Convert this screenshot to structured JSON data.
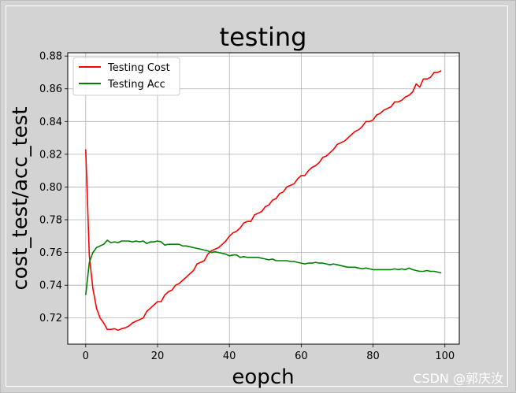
{
  "chart_data": {
    "type": "line",
    "title": "testing",
    "xlabel": "eopch",
    "ylabel": "cost_test/acc_test",
    "xlim": [
      -5,
      104
    ],
    "ylim": [
      0.704,
      0.882
    ],
    "xticks": [
      0,
      20,
      40,
      60,
      80,
      100
    ],
    "yticks": [
      0.72,
      0.74,
      0.76,
      0.78,
      0.8,
      0.82,
      0.84,
      0.86,
      0.88
    ],
    "xtick_labels": [
      "0",
      "20",
      "40",
      "60",
      "80",
      "100"
    ],
    "ytick_labels": [
      "0.72",
      "0.74",
      "0.76",
      "0.78",
      "0.80",
      "0.82",
      "0.84",
      "0.86",
      "0.88"
    ],
    "grid": true,
    "legend_position": "top-left",
    "series": [
      {
        "name": "Testing Cost",
        "color": "#ff0000",
        "x": [
          0,
          1,
          2,
          3,
          4,
          5,
          6,
          7,
          8,
          9,
          10,
          11,
          12,
          13,
          14,
          15,
          16,
          17,
          18,
          19,
          20,
          21,
          22,
          23,
          24,
          25,
          26,
          27,
          28,
          29,
          30,
          31,
          32,
          33,
          34,
          35,
          36,
          37,
          38,
          39,
          40,
          41,
          42,
          43,
          44,
          45,
          46,
          47,
          48,
          49,
          50,
          51,
          52,
          53,
          54,
          55,
          56,
          57,
          58,
          59,
          60,
          61,
          62,
          63,
          64,
          65,
          66,
          67,
          68,
          69,
          70,
          71,
          72,
          73,
          74,
          75,
          76,
          77,
          78,
          79,
          80,
          81,
          82,
          83,
          84,
          85,
          86,
          87,
          88,
          89,
          90,
          91,
          92,
          93,
          94,
          95,
          96,
          97,
          98,
          99
        ],
        "y": [
          0.823,
          0.758,
          0.738,
          0.726,
          0.72,
          0.717,
          0.713,
          0.713,
          0.7135,
          0.7125,
          0.7135,
          0.714,
          0.715,
          0.717,
          0.718,
          0.719,
          0.72,
          0.724,
          0.726,
          0.728,
          0.73,
          0.73,
          0.734,
          0.736,
          0.737,
          0.74,
          0.741,
          0.743,
          0.745,
          0.747,
          0.749,
          0.753,
          0.754,
          0.755,
          0.759,
          0.761,
          0.762,
          0.763,
          0.765,
          0.767,
          0.77,
          0.772,
          0.773,
          0.775,
          0.778,
          0.779,
          0.779,
          0.783,
          0.784,
          0.785,
          0.788,
          0.789,
          0.792,
          0.793,
          0.796,
          0.797,
          0.8,
          0.801,
          0.802,
          0.805,
          0.807,
          0.807,
          0.81,
          0.812,
          0.813,
          0.815,
          0.818,
          0.819,
          0.821,
          0.823,
          0.826,
          0.827,
          0.828,
          0.83,
          0.832,
          0.834,
          0.835,
          0.837,
          0.84,
          0.84,
          0.841,
          0.844,
          0.845,
          0.847,
          0.848,
          0.849,
          0.852,
          0.852,
          0.853,
          0.855,
          0.856,
          0.858,
          0.863,
          0.861,
          0.866,
          0.866,
          0.867,
          0.87,
          0.87,
          0.871
        ]
      },
      {
        "name": "Testing Acc",
        "color": "#008000",
        "x": [
          0,
          1,
          2,
          3,
          4,
          5,
          6,
          7,
          8,
          9,
          10,
          11,
          12,
          13,
          14,
          15,
          16,
          17,
          18,
          19,
          20,
          21,
          22,
          23,
          24,
          25,
          26,
          27,
          28,
          29,
          30,
          31,
          32,
          33,
          34,
          35,
          36,
          37,
          38,
          39,
          40,
          41,
          42,
          43,
          44,
          45,
          46,
          47,
          48,
          49,
          50,
          51,
          52,
          53,
          54,
          55,
          56,
          57,
          58,
          59,
          60,
          61,
          62,
          63,
          64,
          65,
          66,
          67,
          68,
          69,
          70,
          71,
          72,
          73,
          74,
          75,
          76,
          77,
          78,
          79,
          80,
          81,
          82,
          83,
          84,
          85,
          86,
          87,
          88,
          89,
          90,
          91,
          92,
          93,
          94,
          95,
          96,
          97,
          98,
          99
        ],
        "y": [
          0.734,
          0.754,
          0.76,
          0.763,
          0.764,
          0.765,
          0.7675,
          0.766,
          0.7665,
          0.766,
          0.767,
          0.767,
          0.767,
          0.7665,
          0.767,
          0.7665,
          0.767,
          0.7655,
          0.7665,
          0.7665,
          0.767,
          0.7665,
          0.7645,
          0.765,
          0.765,
          0.765,
          0.765,
          0.764,
          0.764,
          0.7635,
          0.763,
          0.7625,
          0.762,
          0.7615,
          0.761,
          0.76,
          0.7605,
          0.76,
          0.7595,
          0.759,
          0.758,
          0.7585,
          0.7585,
          0.757,
          0.7575,
          0.757,
          0.757,
          0.757,
          0.757,
          0.7565,
          0.756,
          0.7555,
          0.756,
          0.755,
          0.755,
          0.755,
          0.755,
          0.7545,
          0.7545,
          0.754,
          0.7535,
          0.753,
          0.7535,
          0.7535,
          0.754,
          0.7535,
          0.7535,
          0.753,
          0.7525,
          0.753,
          0.7525,
          0.752,
          0.7515,
          0.751,
          0.751,
          0.751,
          0.7505,
          0.75,
          0.7505,
          0.75,
          0.7495,
          0.7495,
          0.7495,
          0.7495,
          0.7495,
          0.7495,
          0.75,
          0.7495,
          0.75,
          0.7495,
          0.7505,
          0.7495,
          0.749,
          0.7485,
          0.7485,
          0.749,
          0.7485,
          0.7485,
          0.748,
          0.7475
        ]
      }
    ]
  },
  "watermark": "CSDN @郭庆汝"
}
